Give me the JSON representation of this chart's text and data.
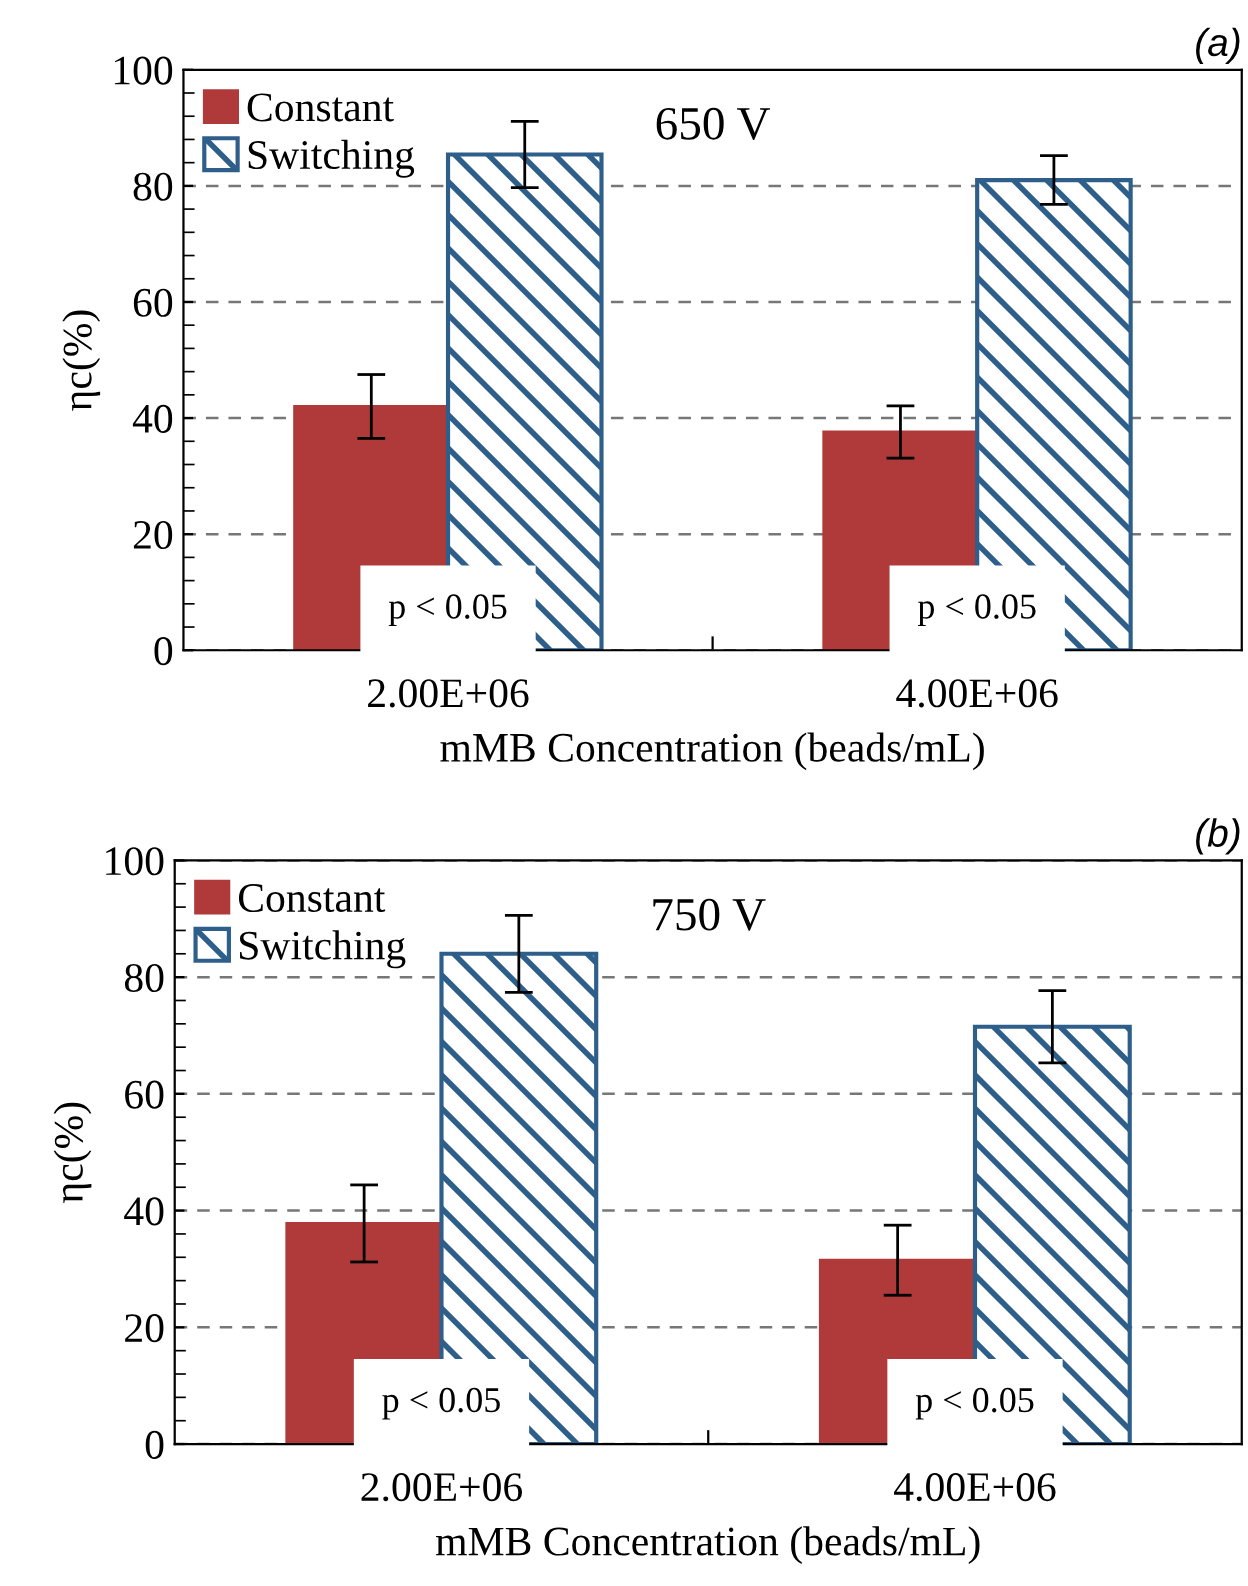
{
  "chart_data": [
    {
      "type": "bar",
      "ylabel": "ηc(%)",
      "xlabel": "mMB Concentration (beads/mL)",
      "categories": [
        "2.00E+06",
        "4.00E+06"
      ],
      "ylim": [
        0,
        100
      ],
      "yticks": [
        0,
        20,
        40,
        60,
        80,
        100
      ],
      "grid": "y",
      "legend": "top left",
      "series": [
        {
          "name": "Constant",
          "color": "#b03a3a",
          "values": [
            42,
            37.6
          ],
          "errors": [
            5.5,
            4.5
          ]
        },
        {
          "name": "Switching",
          "color": "#2e5f8a",
          "values": [
            85.4,
            81
          ],
          "errors": [
            5.7,
            4.2
          ]
        }
      ],
      "annotations": [
        "(a)",
        "650 V",
        {
          "text": "p < 0.05",
          "x": "2.00E+06",
          "y": 7
        },
        {
          "text": "p < 0.05",
          "x": "4.00E+06",
          "y": 7
        }
      ]
    },
    {
      "type": "bar",
      "ylabel": "ηc(%)",
      "xlabel": "mMB Concentration (beads/mL)",
      "categories": [
        "2.00E+06",
        "4.00E+06"
      ],
      "ylim": [
        0,
        100
      ],
      "yticks": [
        0,
        20,
        40,
        60,
        80,
        100
      ],
      "grid": "y",
      "legend": "top left",
      "series": [
        {
          "name": "Constant",
          "color": "#b03a3a",
          "values": [
            37.8,
            31.5
          ],
          "errors": [
            6.6,
            6
          ]
        },
        {
          "name": "Switching",
          "color": "#2e5f8a",
          "values": [
            84,
            71.5
          ],
          "errors": [
            6.6,
            6.2
          ]
        }
      ],
      "annotations": [
        "(b)",
        "750 V",
        {
          "text": "p < 0.05",
          "x": "2.00E+06",
          "y": 7
        },
        {
          "text": "p < 0.05",
          "x": "4.00E+06",
          "y": 7
        }
      ]
    }
  ]
}
